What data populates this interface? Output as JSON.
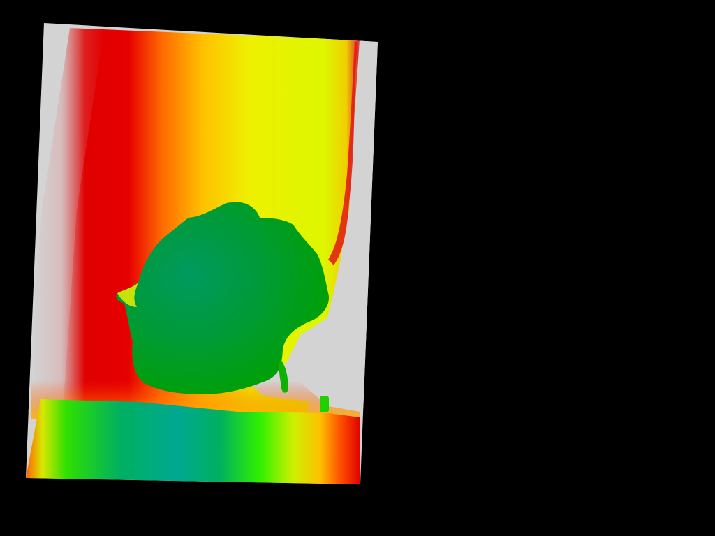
{
  "scene": {
    "background_color": "#000000",
    "invalid_color": "#d3d3d3",
    "colormap": [
      "#00a890",
      "#00c000",
      "#40ff00",
      "#ccff00",
      "#ffff00",
      "#ffd000",
      "#ff8000",
      "#e00000"
    ],
    "regions": [
      "depth-frame",
      "back-wall",
      "foreground-object",
      "bottom-surface"
    ]
  }
}
